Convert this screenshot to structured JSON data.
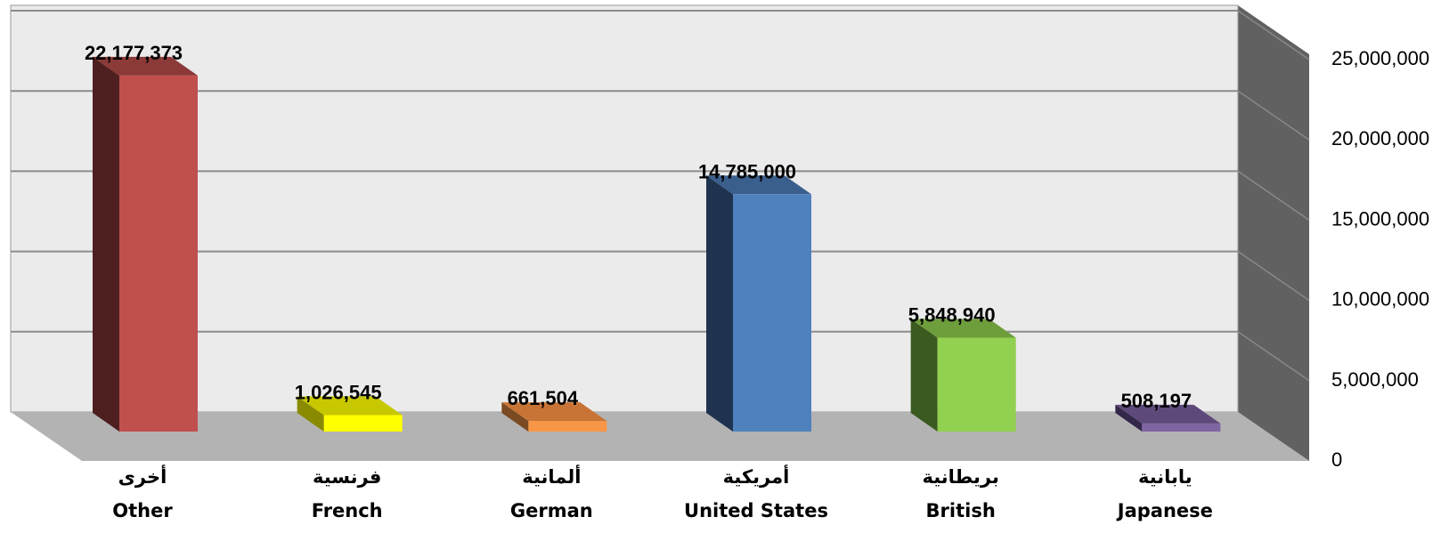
{
  "chart_data": {
    "type": "bar",
    "categories": [
      {
        "ar": "أخرى",
        "en": "Other"
      },
      {
        "ar": "فرنسية",
        "en": "French"
      },
      {
        "ar": "ألمانية",
        "en": "German"
      },
      {
        "ar": "أمريكية",
        "en": "United States"
      },
      {
        "ar": "بريطانية",
        "en": "British"
      },
      {
        "ar": "يابانية",
        "en": "Japanese"
      }
    ],
    "values": [
      22177373,
      1026545,
      661504,
      14785000,
      5848940,
      508197
    ],
    "value_labels": [
      "22,177,373",
      "1,026,545",
      "661,504",
      "14,785,000",
      "5,848,940",
      "508,197"
    ],
    "colors": [
      {
        "front": "#c0504d",
        "side": "#4e1f1f",
        "top": "#8b3a38"
      },
      {
        "front": "#ffff00",
        "side": "#8a8a00",
        "top": "#c8c800"
      },
      {
        "front": "#f79646",
        "side": "#7a4a22",
        "top": "#c87436"
      },
      {
        "front": "#4f81bd",
        "side": "#1f3350",
        "top": "#3a5f8c"
      },
      {
        "front": "#92d050",
        "side": "#3a5a20",
        "top": "#6e9e3c"
      },
      {
        "front": "#8064a2",
        "side": "#33284a",
        "top": "#5e4a7a"
      }
    ],
    "y_ticks": [
      "0",
      "5,000,000",
      "10,000,000",
      "15,000,000",
      "20,000,000",
      "25,000,000"
    ],
    "ylim": [
      0,
      25000000
    ],
    "grid": true,
    "style": "3d-columns",
    "axis_position": "right",
    "wall_color": "#ebebeb",
    "floor_color": "#b3b3b3",
    "side_wall_color": "#616161"
  }
}
